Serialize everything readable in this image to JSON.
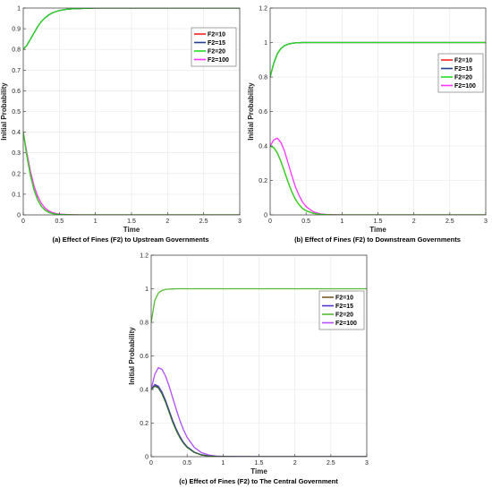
{
  "chart_data": [
    {
      "type": "line",
      "id": "a",
      "caption": "(a) Effect of Fines (F2) to Upstream Governments",
      "xlabel": "Time",
      "ylabel": "Initial Probability",
      "xlim": [
        0,
        3
      ],
      "ylim": [
        0,
        1
      ],
      "xticks": [
        0,
        0.5,
        1,
        1.5,
        2,
        2.5,
        3
      ],
      "xtick_labels": [
        "0",
        "0.5",
        "1",
        "1.5",
        "2",
        "2.5",
        "3"
      ],
      "yticks": [
        0,
        0.1,
        0.2,
        0.3,
        0.4,
        0.5,
        0.6,
        0.7,
        0.8,
        0.9,
        1
      ],
      "ytick_labels": [
        "0",
        "0.1",
        "0.2",
        "0.3",
        "0.4",
        "0.5",
        "0.6",
        "0.7",
        "0.8",
        "0.9",
        "1"
      ],
      "legend_position": "top-right",
      "grid": true,
      "x": [
        0,
        0.05,
        0.1,
        0.15,
        0.2,
        0.25,
        0.3,
        0.35,
        0.4,
        0.45,
        0.5,
        0.6,
        0.7,
        0.8,
        0.9,
        1,
        1.2,
        1.5,
        2,
        2.5,
        3
      ],
      "series": [
        {
          "name": "F2=10",
          "color": "#ff2020",
          "group": "upper",
          "values": [
            0.8,
            0.82,
            0.85,
            0.88,
            0.91,
            0.935,
            0.952,
            0.966,
            0.976,
            0.983,
            0.988,
            0.994,
            0.997,
            0.998,
            0.999,
            1,
            1,
            1,
            1,
            1,
            1
          ]
        },
        {
          "name": "F2=15",
          "color": "#1f3f8f",
          "group": "upper",
          "values": [
            0.8,
            0.82,
            0.85,
            0.88,
            0.91,
            0.935,
            0.952,
            0.966,
            0.976,
            0.983,
            0.988,
            0.994,
            0.997,
            0.998,
            0.999,
            1,
            1,
            1,
            1,
            1,
            1
          ]
        },
        {
          "name": "F2=20",
          "color": "#22dd22",
          "group": "upper",
          "values": [
            0.8,
            0.82,
            0.85,
            0.88,
            0.91,
            0.935,
            0.952,
            0.966,
            0.976,
            0.983,
            0.988,
            0.994,
            0.997,
            0.998,
            0.999,
            1,
            1,
            1,
            1,
            1,
            1
          ]
        },
        {
          "name": "F2=100",
          "color": "#ff33ff",
          "group": "lower",
          "values": [
            0.4,
            0.3,
            0.21,
            0.14,
            0.09,
            0.056,
            0.034,
            0.02,
            0.012,
            0.007,
            0.004,
            0.002,
            0.001,
            0,
            0,
            0,
            0,
            0,
            0,
            0,
            0
          ]
        },
        {
          "name": "F2=10 (lower)",
          "color": "#ff2020",
          "group": "lower",
          "legend": false,
          "values": [
            0.4,
            0.285,
            0.19,
            0.12,
            0.072,
            0.042,
            0.024,
            0.013,
            0.007,
            0.004,
            0.002,
            0.001,
            0,
            0,
            0,
            0,
            0,
            0,
            0,
            0,
            0
          ]
        },
        {
          "name": "F2=20 (lower)",
          "color": "#22dd22",
          "group": "lower",
          "legend": false,
          "values": [
            0.4,
            0.285,
            0.19,
            0.12,
            0.072,
            0.042,
            0.024,
            0.013,
            0.007,
            0.004,
            0.002,
            0.001,
            0,
            0,
            0,
            0,
            0,
            0,
            0,
            0,
            0
          ]
        }
      ],
      "legend": [
        "F2=10",
        "F2=15",
        "F2=20",
        "F2=100"
      ]
    },
    {
      "type": "line",
      "id": "b",
      "caption": "(b) Effect of Fines (F2) to Downstream Governments",
      "xlabel": "Time",
      "ylabel": "Initial Probability",
      "xlim": [
        0,
        3
      ],
      "ylim": [
        0,
        1.2
      ],
      "xticks": [
        0,
        0.5,
        1,
        1.5,
        2,
        2.5,
        3
      ],
      "xtick_labels": [
        "0",
        "0.5",
        "1",
        "1.5",
        "2",
        "2.5",
        "3"
      ],
      "yticks": [
        0,
        0.2,
        0.4,
        0.6,
        0.8,
        1,
        1.2
      ],
      "ytick_labels": [
        "0",
        "0.2",
        "0.4",
        "0.6",
        "0.8",
        "1",
        "1.2"
      ],
      "legend_position": "right",
      "grid": true,
      "x": [
        0,
        0.05,
        0.1,
        0.15,
        0.2,
        0.25,
        0.3,
        0.35,
        0.4,
        0.45,
        0.5,
        0.6,
        0.7,
        0.8,
        0.9,
        1,
        1.2,
        1.5,
        2,
        2.5,
        3
      ],
      "series": [
        {
          "name": "F2=10",
          "color": "#ff2020",
          "group": "upper",
          "values": [
            0.8,
            0.88,
            0.935,
            0.965,
            0.982,
            0.991,
            0.995,
            0.998,
            0.999,
            1,
            1,
            1,
            1,
            1,
            1,
            1,
            1,
            1,
            1,
            1,
            1
          ]
        },
        {
          "name": "F2=15",
          "color": "#1f3f8f",
          "group": "upper",
          "values": [
            0.8,
            0.88,
            0.935,
            0.965,
            0.982,
            0.991,
            0.995,
            0.998,
            0.999,
            1,
            1,
            1,
            1,
            1,
            1,
            1,
            1,
            1,
            1,
            1,
            1
          ]
        },
        {
          "name": "F2=20",
          "color": "#22dd22",
          "group": "upper",
          "values": [
            0.8,
            0.88,
            0.935,
            0.965,
            0.982,
            0.991,
            0.995,
            0.998,
            0.999,
            1,
            1,
            1,
            1,
            1,
            1,
            1,
            1,
            1,
            1,
            1,
            1
          ]
        },
        {
          "name": "F2=100",
          "color": "#ff33ff",
          "group": "lower",
          "values": [
            0.4,
            0.435,
            0.445,
            0.42,
            0.37,
            0.3,
            0.23,
            0.165,
            0.115,
            0.075,
            0.048,
            0.018,
            0.006,
            0.002,
            0.001,
            0,
            0,
            0,
            0,
            0,
            0
          ]
        },
        {
          "name": "F2=10 (lower)",
          "color": "#ff2020",
          "group": "lower",
          "legend": false,
          "values": [
            0.4,
            0.39,
            0.36,
            0.31,
            0.25,
            0.19,
            0.135,
            0.092,
            0.06,
            0.038,
            0.024,
            0.009,
            0.003,
            0.001,
            0,
            0,
            0,
            0,
            0,
            0,
            0
          ]
        },
        {
          "name": "F2=20 (lower)",
          "color": "#22dd22",
          "group": "lower",
          "legend": false,
          "values": [
            0.4,
            0.39,
            0.36,
            0.31,
            0.25,
            0.19,
            0.135,
            0.092,
            0.06,
            0.038,
            0.024,
            0.009,
            0.003,
            0.001,
            0,
            0,
            0,
            0,
            0,
            0,
            0
          ]
        }
      ],
      "legend": [
        "F2=10",
        "F2=15",
        "F2=20",
        "F2=100"
      ]
    },
    {
      "type": "line",
      "id": "c",
      "caption": "(c) Effect of Fines (F2) to The Central Government",
      "xlabel": "Time",
      "ylabel": "Initial Probability",
      "xlim": [
        0,
        3
      ],
      "ylim": [
        0,
        1.2
      ],
      "xticks": [
        0,
        0.5,
        1,
        1.5,
        2,
        2.5,
        3
      ],
      "xtick_labels": [
        "0",
        "0.5",
        "1",
        "1.5",
        "2",
        "2.5",
        "3"
      ],
      "yticks": [
        0,
        0.2,
        0.4,
        0.6,
        0.8,
        1,
        1.2
      ],
      "ytick_labels": [
        "0",
        "0.2",
        "0.4",
        "0.6",
        "0.8",
        "1",
        "1.2"
      ],
      "legend_position": "right",
      "grid": true,
      "x": [
        0,
        0.05,
        0.1,
        0.15,
        0.2,
        0.25,
        0.3,
        0.35,
        0.4,
        0.45,
        0.5,
        0.6,
        0.7,
        0.8,
        0.9,
        1,
        1.2,
        1.5,
        2,
        2.5,
        3
      ],
      "series": [
        {
          "name": "F2=10",
          "color": "#7a5a2a",
          "group": "lower",
          "values": [
            0.4,
            0.425,
            0.415,
            0.38,
            0.33,
            0.27,
            0.21,
            0.16,
            0.117,
            0.083,
            0.057,
            0.026,
            0.011,
            0.004,
            0.002,
            0.001,
            0,
            0,
            0,
            0,
            0
          ]
        },
        {
          "name": "F2=15",
          "color": "#5533cc",
          "group": "lower",
          "values": [
            0.4,
            0.43,
            0.42,
            0.385,
            0.335,
            0.275,
            0.215,
            0.163,
            0.12,
            0.085,
            0.059,
            0.027,
            0.011,
            0.004,
            0.002,
            0.001,
            0,
            0,
            0,
            0,
            0
          ]
        },
        {
          "name": "F2=20",
          "color": "#55bb33",
          "group": "upper",
          "values": [
            0.8,
            0.93,
            0.975,
            0.99,
            0.996,
            0.998,
            0.999,
            1,
            1,
            1,
            1,
            1,
            1,
            1,
            1,
            1,
            1,
            1,
            1,
            1,
            1
          ]
        },
        {
          "name": "F2=100",
          "color": "#b04dff",
          "group": "lower",
          "values": [
            0.4,
            0.49,
            0.53,
            0.52,
            0.48,
            0.42,
            0.35,
            0.28,
            0.215,
            0.16,
            0.115,
            0.055,
            0.024,
            0.01,
            0.004,
            0.002,
            0.001,
            0,
            0,
            0,
            0
          ]
        },
        {
          "name": "F2=20 (lower)",
          "color": "#2d6a2d",
          "group": "lower",
          "legend": false,
          "values": [
            0.4,
            0.42,
            0.41,
            0.375,
            0.325,
            0.265,
            0.205,
            0.155,
            0.113,
            0.08,
            0.055,
            0.025,
            0.01,
            0.004,
            0.002,
            0.001,
            0,
            0,
            0,
            0,
            0
          ]
        }
      ],
      "legend": [
        "F2=10",
        "F2=15",
        "F2=20",
        "F2=100"
      ]
    }
  ]
}
